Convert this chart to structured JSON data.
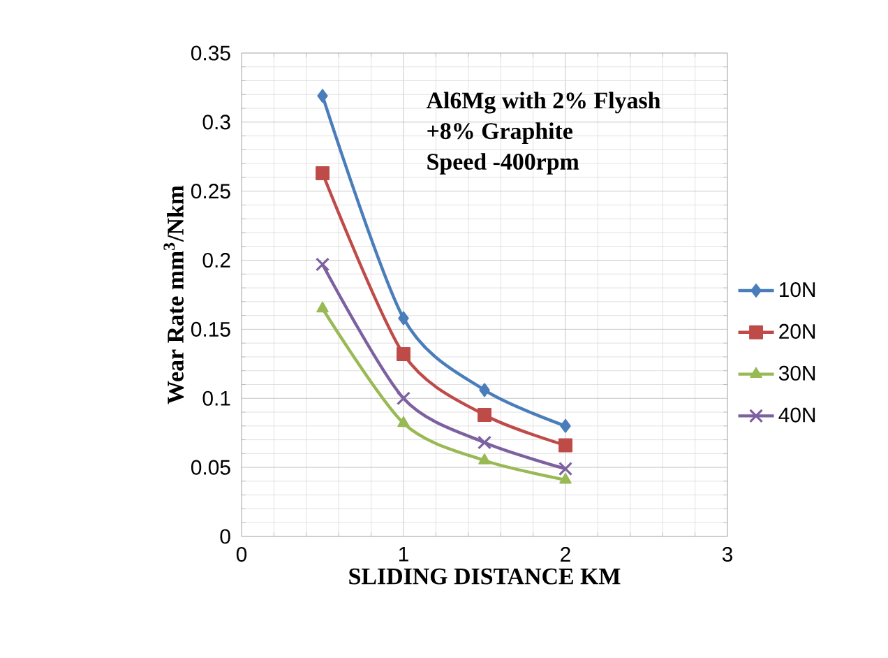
{
  "chart_data": {
    "type": "line",
    "xlabel": "SLIDING DISTANCE KM",
    "ylabel": "Wear Rate  mm$^{3}$/Nkm",
    "annotations": [
      "Al6Mg with 2% Flyash",
      "+8% Graphite",
      "Speed -400rpm"
    ],
    "xlim": [
      0,
      3
    ],
    "ylim": [
      0,
      0.35
    ],
    "xticks": [
      0,
      1,
      2,
      3
    ],
    "yticks": [
      0,
      0.05,
      0.1,
      0.15,
      0.2,
      0.25,
      0.3,
      0.35
    ],
    "grid": true,
    "legend": "right",
    "series": [
      {
        "name": "10N",
        "color": "#4a7ebb",
        "marker": "diamond",
        "x": [
          0.5,
          1,
          1.5,
          2
        ],
        "values": [
          0.319,
          0.158,
          0.106,
          0.08
        ]
      },
      {
        "name": "20N",
        "color": "#be4b48",
        "marker": "square",
        "x": [
          0.5,
          1,
          1.5,
          2
        ],
        "values": [
          0.263,
          0.132,
          0.088,
          0.066
        ]
      },
      {
        "name": "30N",
        "color": "#98b954",
        "marker": "triangle",
        "x": [
          0.5,
          1,
          1.5,
          2
        ],
        "values": [
          0.165,
          0.082,
          0.055,
          0.041
        ]
      },
      {
        "name": "40N",
        "color": "#7d60a0",
        "marker": "cross",
        "x": [
          0.5,
          1,
          1.5,
          2
        ],
        "values": [
          0.197,
          0.1,
          0.068,
          0.049
        ]
      }
    ]
  }
}
